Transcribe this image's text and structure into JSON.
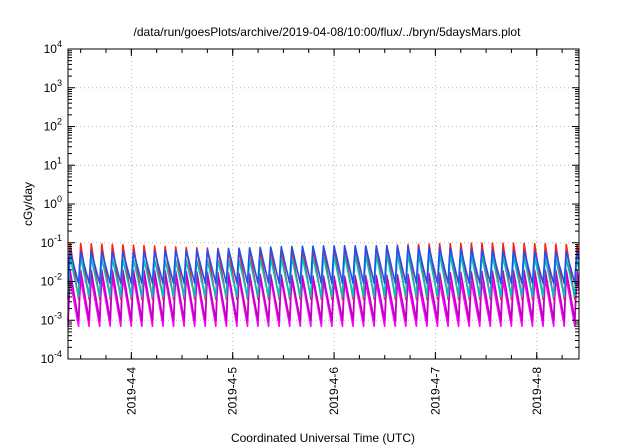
{
  "chart_data": {
    "type": "line",
    "title": "/data/run/goesPlots/archive/2019-04-08/10:00/flux/../bryn/5daysMars.plot",
    "xlabel": "Coordinated Universal Time (UTC)",
    "ylabel": "cGy/day",
    "yscale": "log",
    "ylim": [
      0.0001,
      10000
    ],
    "y_ticks": [
      {
        "base": "10",
        "exp": "-4"
      },
      {
        "base": "10",
        "exp": "-3"
      },
      {
        "base": "10",
        "exp": "-2"
      },
      {
        "base": "10",
        "exp": "-1"
      },
      {
        "base": "10",
        "exp": "0"
      },
      {
        "base": "10",
        "exp": "1"
      },
      {
        "base": "10",
        "exp": "2"
      },
      {
        "base": "10",
        "exp": "3"
      },
      {
        "base": "10",
        "exp": "4"
      }
    ],
    "xlim": [
      "2019-04-03T09:00",
      "2019-04-08T10:00"
    ],
    "x_ticks": [
      {
        "label": "2019-4-4",
        "value": "2019-04-04T00:00"
      },
      {
        "label": "2019-4-5",
        "value": "2019-04-05T00:00"
      },
      {
        "label": "2019-4-6",
        "value": "2019-04-06T00:00"
      },
      {
        "label": "2019-4-7",
        "value": "2019-04-07T00:00"
      },
      {
        "label": "2019-4-8",
        "value": "2019-04-08T00:00"
      }
    ],
    "grid": true,
    "period_hours": 2.5,
    "series": [
      {
        "color": "#ff00ff",
        "peak": 0.012,
        "trough": 0.0007
      },
      {
        "color": "#c000c0",
        "peak": 0.018,
        "trough": 0.001
      },
      {
        "color": "#ff1e1e",
        "peak": 0.09,
        "trough": 0.0035
      },
      {
        "color": "#00c0c0",
        "peak": 0.045,
        "trough": 0.004
      },
      {
        "color": "#2050f0",
        "peak": 0.075,
        "trough": 0.009
      }
    ]
  }
}
